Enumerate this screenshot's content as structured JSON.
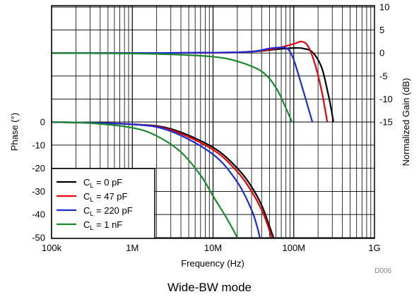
{
  "caption": "Wide-BW mode",
  "chart_data": {
    "type": "line",
    "xlabel": "Frequency (Hz)",
    "ylabel_left": "Phase (°)",
    "ylabel_right": "Normalized Gain (dB)",
    "x_scale": "log",
    "xlim": [
      100000,
      1000000000
    ],
    "x_ticks": [
      "100k",
      "1M",
      "10M",
      "100M",
      "1G"
    ],
    "y_left_lim": [
      -50,
      0
    ],
    "y_left_ticks": [
      "0",
      "-10",
      "-20",
      "-30",
      "-40",
      "-50"
    ],
    "y_right_lim": [
      -15,
      10
    ],
    "y_right_ticks": [
      "10",
      "5",
      "0",
      "-5",
      "-10",
      "-15"
    ],
    "grid": true,
    "legend_position": "bottom-left",
    "figure_id": "D006",
    "series": [
      {
        "name_main": "C",
        "name_sub": "L",
        "name_tail": " = 0 pF",
        "color": "#000000",
        "gain": [
          [
            100000,
            0
          ],
          [
            1000000,
            0
          ],
          [
            10000000,
            0.05
          ],
          [
            30000000,
            0.3
          ],
          [
            60000000,
            0.8
          ],
          [
            100000000,
            1.1
          ],
          [
            130000000,
            1.0
          ],
          [
            170000000,
            0.2
          ],
          [
            220000000,
            -3
          ],
          [
            260000000,
            -8
          ],
          [
            290000000,
            -12
          ],
          [
            310000000,
            -15
          ]
        ],
        "phase": [
          [
            100000,
            0
          ],
          [
            1000000,
            -1
          ],
          [
            3000000,
            -3
          ],
          [
            10000000,
            -11
          ],
          [
            20000000,
            -20
          ],
          [
            30000000,
            -28
          ],
          [
            40000000,
            -36
          ],
          [
            50000000,
            -45
          ],
          [
            56000000,
            -50
          ]
        ]
      },
      {
        "name_main": "C",
        "name_sub": "L",
        "name_tail": " = 47 pF",
        "color": "#e8000b",
        "gain": [
          [
            100000,
            0
          ],
          [
            1000000,
            0
          ],
          [
            10000000,
            0.05
          ],
          [
            30000000,
            0.3
          ],
          [
            60000000,
            1.0
          ],
          [
            100000000,
            2.0
          ],
          [
            125000000,
            2.5
          ],
          [
            150000000,
            1.5
          ],
          [
            180000000,
            -2
          ],
          [
            220000000,
            -8
          ],
          [
            260000000,
            -15
          ]
        ],
        "phase": [
          [
            100000,
            0
          ],
          [
            1000000,
            -1
          ],
          [
            3000000,
            -3.5
          ],
          [
            10000000,
            -12
          ],
          [
            20000000,
            -21.5
          ],
          [
            30000000,
            -30
          ],
          [
            40000000,
            -38
          ],
          [
            48000000,
            -45
          ],
          [
            53000000,
            -50
          ]
        ]
      },
      {
        "name_main": "C",
        "name_sub": "L",
        "name_tail": " = 220 pF",
        "color": "#1a2bd6",
        "gain": [
          [
            100000,
            0
          ],
          [
            1000000,
            0
          ],
          [
            10000000,
            0.1
          ],
          [
            30000000,
            0.3
          ],
          [
            50000000,
            1.0
          ],
          [
            70000000,
            1.2
          ],
          [
            85000000,
            0.8
          ],
          [
            100000000,
            -1.5
          ],
          [
            130000000,
            -8
          ],
          [
            170000000,
            -15
          ]
        ],
        "phase": [
          [
            100000,
            0
          ],
          [
            1000000,
            -1
          ],
          [
            3000000,
            -4
          ],
          [
            10000000,
            -14
          ],
          [
            20000000,
            -26
          ],
          [
            30000000,
            -38
          ],
          [
            35000000,
            -45
          ],
          [
            38000000,
            -50
          ]
        ]
      },
      {
        "name_main": "C",
        "name_sub": "L",
        "name_tail": " = 1 nF",
        "color": "#1b8a2e",
        "gain": [
          [
            100000,
            0
          ],
          [
            1000000,
            -0.1
          ],
          [
            3000000,
            -0.3
          ],
          [
            10000000,
            -0.8
          ],
          [
            20000000,
            -1.8
          ],
          [
            40000000,
            -4
          ],
          [
            60000000,
            -7.5
          ],
          [
            80000000,
            -12
          ],
          [
            95000000,
            -15
          ]
        ],
        "phase": [
          [
            100000,
            0
          ],
          [
            300000,
            -0.5
          ],
          [
            1000000,
            -2.5
          ],
          [
            2000000,
            -6
          ],
          [
            4000000,
            -13
          ],
          [
            7000000,
            -23
          ],
          [
            10000000,
            -32
          ],
          [
            15000000,
            -42
          ],
          [
            20000000,
            -50
          ]
        ]
      }
    ]
  }
}
